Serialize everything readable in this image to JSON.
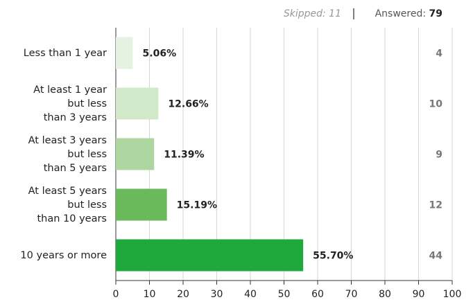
{
  "skipped_label": "Skipped:",
  "skipped": 11,
  "answered_label": "Answered:",
  "answered": 79,
  "chart_data": {
    "type": "bar",
    "orientation": "horizontal",
    "categories": [
      "Less than 1 year",
      "At least 1 year\nbut less\nthan 3 years",
      "At least 3 years\nbut less\nthan 5 years",
      "At least 5 years\nbut less\nthan 10 years",
      "10 years or more"
    ],
    "values": [
      5.06,
      12.66,
      11.39,
      15.19,
      55.7
    ],
    "value_labels": [
      "5.06%",
      "12.66%",
      "11.39%",
      "15.19%",
      "55.70%"
    ],
    "counts": [
      4,
      10,
      9,
      12,
      44
    ],
    "colors": [
      "#e6f2e1",
      "#d1e8c9",
      "#aed6a0",
      "#6aba5c",
      "#1fa83b"
    ],
    "xlim": [
      0,
      100
    ],
    "xticks": [
      0,
      10,
      20,
      30,
      40,
      50,
      60,
      70,
      80,
      90,
      100
    ],
    "grid": true
  }
}
